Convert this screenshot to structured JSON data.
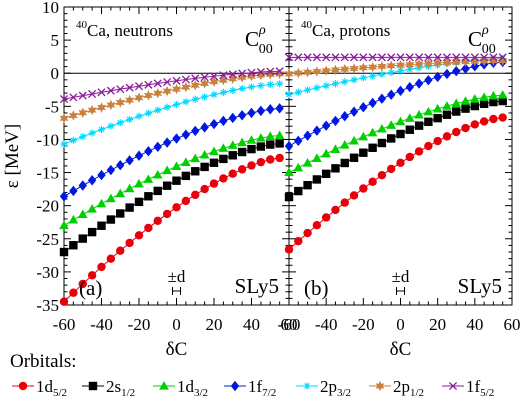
{
  "chart_data": [
    {
      "type": "line",
      "panel_label": "(a)",
      "nucleus_sup": "40",
      "nucleus_text": "Ca, neutrons",
      "functional": "SLy5",
      "coupling_symbol": "C",
      "coupling_sup": "ρ",
      "coupling_sub": "00",
      "range_label": "±d",
      "xlabel_delta": "δ",
      "xlabel": "C",
      "ylabel": "ε [MeV]",
      "xlim": [
        -60,
        60
      ],
      "ylim": [
        -35,
        10
      ],
      "x": [
        -60,
        -55,
        -50,
        -45,
        -40,
        -35,
        -30,
        -25,
        -20,
        -15,
        -10,
        -5,
        0,
        5,
        10,
        15,
        20,
        25,
        30,
        35,
        40,
        45,
        50,
        55
      ],
      "series": [
        {
          "name": "1d5/2",
          "start": -34.5,
          "end": -12.8
        },
        {
          "name": "2s1/2",
          "start": -27.0,
          "end": -10.6
        },
        {
          "name": "1d3/2",
          "start": -23.0,
          "end": -9.4
        },
        {
          "name": "1f7/2",
          "start": -18.6,
          "end": -5.3
        },
        {
          "name": "2p3/2",
          "start": -10.7,
          "end": -1.6
        },
        {
          "name": "2p1/2",
          "start": -6.8,
          "end": -0.1
        },
        {
          "name": "1f5/2",
          "start": -3.9,
          "end": 0.3
        }
      ]
    },
    {
      "type": "line",
      "panel_label": "(b)",
      "nucleus_sup": "40",
      "nucleus_text": "Ca, protons",
      "functional": "SLy5",
      "coupling_symbol": "C",
      "coupling_sup": "ρ",
      "coupling_sub": "00",
      "range_label": "±d",
      "xlabel_delta": "δ",
      "xlabel": "C",
      "xlim": [
        -60,
        60
      ],
      "ylim": [
        -35,
        10
      ],
      "x": [
        -60,
        -55,
        -50,
        -45,
        -40,
        -35,
        -30,
        -25,
        -20,
        -15,
        -10,
        -5,
        0,
        5,
        10,
        15,
        20,
        25,
        30,
        35,
        40,
        45,
        50,
        55
      ],
      "series": [
        {
          "name": "1d5/2",
          "start": -26.6,
          "end": -6.7
        },
        {
          "name": "2s1/2",
          "start": -18.7,
          "end": -4.2
        },
        {
          "name": "1d3/2",
          "start": -15.0,
          "end": -3.3
        },
        {
          "name": "1f7/2",
          "start": -11.0,
          "end": 1.7
        },
        {
          "name": "2p3/2",
          "start": -3.2,
          "end": 2.2
        },
        {
          "name": "2p1/2",
          "start": -0.1,
          "end": 1.9
        },
        {
          "name": "1f5/2",
          "start": 2.4,
          "end": 2.4
        }
      ]
    }
  ],
  "legend": {
    "title": "Orbitals:",
    "items": [
      {
        "base": "1d",
        "sub": "5/2",
        "color": "#e8000b",
        "marker": "circle"
      },
      {
        "base": "2s",
        "sub": "1/2",
        "color": "#000000",
        "marker": "square"
      },
      {
        "base": "1d",
        "sub": "3/2",
        "color": "#00d000",
        "marker": "triangle"
      },
      {
        "base": "1f",
        "sub": "7/2",
        "color": "#0018e0",
        "marker": "diamond"
      },
      {
        "base": "2p",
        "sub": "3/2",
        "color": "#00d8ff",
        "marker": "star"
      },
      {
        "base": "2p",
        "sub": "1/2",
        "color": "#c8823c",
        "marker": "star6"
      },
      {
        "base": "1f",
        "sub": "5/2",
        "color": "#8a1a9a",
        "marker": "cross"
      }
    ]
  }
}
